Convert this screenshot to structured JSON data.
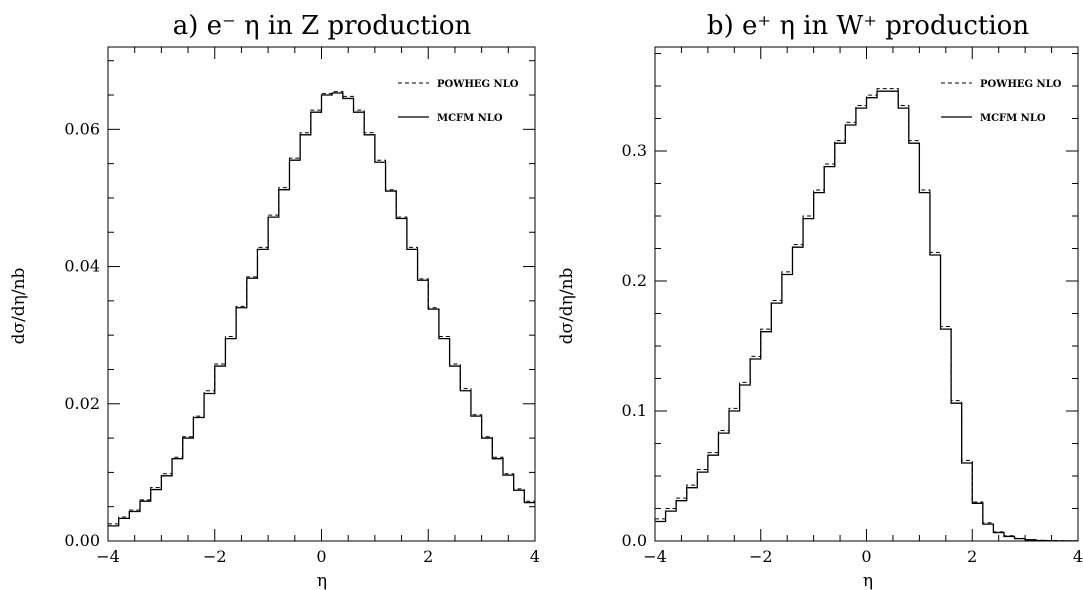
{
  "chart_data": [
    {
      "type": "line",
      "title": "a) e⁻ η in Z production",
      "xlabel": "η",
      "ylabel": "dσ/dη/nb",
      "xlim": [
        -4,
        4
      ],
      "ylim": [
        0,
        0.072
      ],
      "xticks": [
        -4,
        -2,
        0,
        2,
        4
      ],
      "xtick_labels": [
        "−4",
        "−2",
        "0",
        "2",
        "4"
      ],
      "yticks": [
        0,
        0.02,
        0.04,
        0.06
      ],
      "ytick_labels": [
        "0.00",
        "0.02",
        "0.04",
        "0.06"
      ],
      "grid": false,
      "legend_position": "top-right",
      "bin_edges": [
        -4.0,
        -3.8,
        -3.6,
        -3.4,
        -3.2,
        -3.0,
        -2.8,
        -2.6,
        -2.4,
        -2.2,
        -2.0,
        -1.8,
        -1.6,
        -1.4,
        -1.2,
        -1.0,
        -0.8,
        -0.6,
        -0.4,
        -0.2,
        0.0,
        0.2,
        0.4,
        0.6,
        0.8,
        1.0,
        1.2,
        1.4,
        1.6,
        1.8,
        2.0,
        2.2,
        2.4,
        2.6,
        2.8,
        3.0,
        3.2,
        3.4,
        3.6,
        3.8,
        4.0
      ],
      "series": [
        {
          "name": "POWHEG NLO",
          "style": "dashed",
          "values": [
            0.0025,
            0.0035,
            0.0045,
            0.006,
            0.0078,
            0.0098,
            0.0122,
            0.0152,
            0.0182,
            0.0219,
            0.0258,
            0.0298,
            0.0342,
            0.0385,
            0.0428,
            0.0475,
            0.0515,
            0.0558,
            0.0595,
            0.0628,
            0.0652,
            0.0655,
            0.0648,
            0.0628,
            0.0595,
            0.0555,
            0.0512,
            0.0472,
            0.0428,
            0.0382,
            0.034,
            0.0298,
            0.0258,
            0.0222,
            0.0184,
            0.0152,
            0.0122,
            0.0098,
            0.0076,
            0.0058,
            0.0042
          ]
        },
        {
          "name": "MCFM NLO",
          "style": "solid",
          "values": [
            0.0022,
            0.0033,
            0.0043,
            0.0058,
            0.0075,
            0.0095,
            0.012,
            0.015,
            0.018,
            0.0215,
            0.0255,
            0.0295,
            0.034,
            0.0383,
            0.0425,
            0.0472,
            0.0512,
            0.0555,
            0.0592,
            0.0625,
            0.065,
            0.0653,
            0.0645,
            0.0625,
            0.0592,
            0.0552,
            0.051,
            0.047,
            0.0425,
            0.038,
            0.0338,
            0.0295,
            0.0255,
            0.0219,
            0.0182,
            0.015,
            0.012,
            0.0096,
            0.0074,
            0.0056,
            0.004
          ]
        }
      ]
    },
    {
      "type": "line",
      "title": "b) e⁺ η in W⁺ production",
      "xlabel": "η",
      "ylabel": "dσ/dη/nb",
      "xlim": [
        -4,
        4
      ],
      "ylim": [
        0,
        0.38
      ],
      "xticks": [
        -4,
        -2,
        0,
        2,
        4
      ],
      "xtick_labels": [
        "−4",
        "−2",
        "0",
        "2",
        "4"
      ],
      "yticks": [
        0,
        0.1,
        0.2,
        0.3
      ],
      "ytick_labels": [
        "0.0",
        "0.1",
        "0.2",
        "0.3"
      ],
      "grid": false,
      "legend_position": "top-right",
      "bin_edges": [
        -4.0,
        -3.8,
        -3.6,
        -3.4,
        -3.2,
        -3.0,
        -2.8,
        -2.6,
        -2.4,
        -2.2,
        -2.0,
        -1.8,
        -1.6,
        -1.4,
        -1.2,
        -1.0,
        -0.8,
        -0.6,
        -0.4,
        -0.2,
        0.0,
        0.2,
        0.4,
        0.6,
        0.8,
        1.0,
        1.2,
        1.4,
        1.6,
        1.8,
        2.0,
        2.2,
        2.4,
        2.6,
        2.8,
        3.0,
        3.2,
        3.4,
        3.6,
        3.8,
        4.0
      ],
      "series": [
        {
          "name": "POWHEG NLO",
          "style": "dashed",
          "values": [
            0.017,
            0.025,
            0.033,
            0.043,
            0.055,
            0.068,
            0.085,
            0.102,
            0.122,
            0.142,
            0.163,
            0.185,
            0.207,
            0.228,
            0.25,
            0.27,
            0.29,
            0.308,
            0.322,
            0.335,
            0.343,
            0.348,
            0.348,
            0.335,
            0.308,
            0.27,
            0.222,
            0.165,
            0.108,
            0.062,
            0.03,
            0.014,
            0.007,
            0.004,
            0.002,
            0.001,
            0.0005,
            0.0003,
            0.0002,
            0.0001,
            0.0001
          ]
        },
        {
          "name": "MCFM NLO",
          "style": "solid",
          "values": [
            0.015,
            0.023,
            0.031,
            0.041,
            0.053,
            0.066,
            0.083,
            0.1,
            0.12,
            0.14,
            0.161,
            0.183,
            0.205,
            0.226,
            0.248,
            0.268,
            0.288,
            0.306,
            0.32,
            0.333,
            0.341,
            0.346,
            0.346,
            0.333,
            0.306,
            0.268,
            0.22,
            0.163,
            0.106,
            0.06,
            0.029,
            0.013,
            0.0065,
            0.0035,
            0.0018,
            0.0009,
            0.0004,
            0.0002,
            0.0001,
            0.0001,
            0.0001
          ]
        }
      ]
    }
  ]
}
